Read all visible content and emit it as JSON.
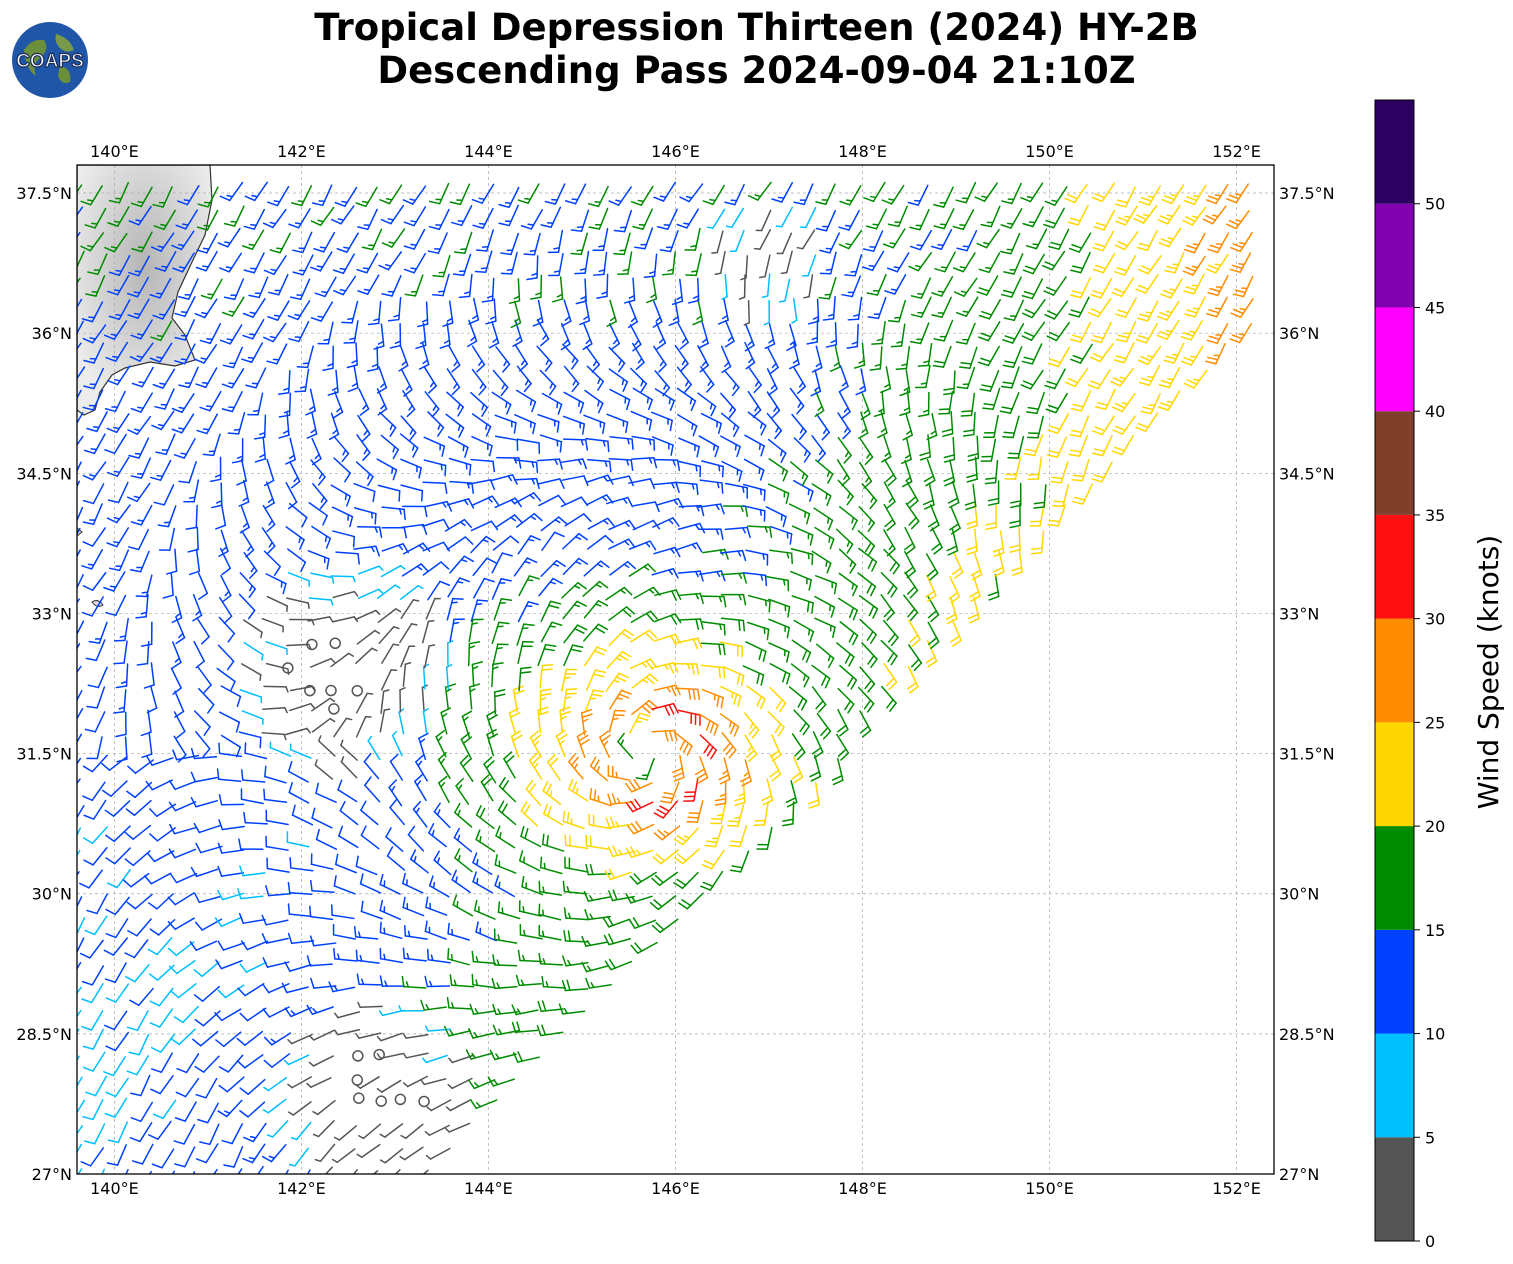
{
  "title": {
    "line1": "Tropical Depression Thirteen (2024) HY-2B",
    "line2": "Descending Pass 2024-09-04 21:10Z"
  },
  "logo": {
    "text": "COAPS",
    "icon": "globe-icon"
  },
  "map": {
    "lon_labels": [
      "140°E",
      "142°E",
      "144°E",
      "146°E",
      "148°E",
      "150°E",
      "152°E"
    ],
    "lat_labels": [
      "37.5°N",
      "36°N",
      "34.5°N",
      "33°N",
      "31.5°N",
      "30°N",
      "28.5°N",
      "27°N"
    ],
    "lon_range": [
      139.6,
      152.4
    ],
    "lat_range": [
      27.0,
      37.8
    ],
    "grid": true,
    "storm_center": {
      "lon": 145.7,
      "lat": 31.5
    }
  },
  "colorbar": {
    "label": "Wind Speed (knots)",
    "ticks": [
      "0",
      "5",
      "10",
      "15",
      "20",
      "25",
      "30",
      "35",
      "40",
      "45",
      "50"
    ],
    "bins": [
      {
        "min": 0,
        "max": 5,
        "color": "#555555"
      },
      {
        "min": 5,
        "max": 10,
        "color": "#00bfff"
      },
      {
        "min": 10,
        "max": 15,
        "color": "#0040ff"
      },
      {
        "min": 15,
        "max": 20,
        "color": "#008c00"
      },
      {
        "min": 20,
        "max": 25,
        "color": "#ffd700"
      },
      {
        "min": 25,
        "max": 30,
        "color": "#ff8c00"
      },
      {
        "min": 30,
        "max": 35,
        "color": "#ff1010"
      },
      {
        "min": 35,
        "max": 40,
        "color": "#7f3f2a"
      },
      {
        "min": 40,
        "max": 45,
        "color": "#ff00ff"
      },
      {
        "min": 45,
        "max": 50,
        "color": "#8000b0"
      },
      {
        "min": 50,
        "max": 55,
        "color": "#2a0060"
      }
    ]
  }
}
